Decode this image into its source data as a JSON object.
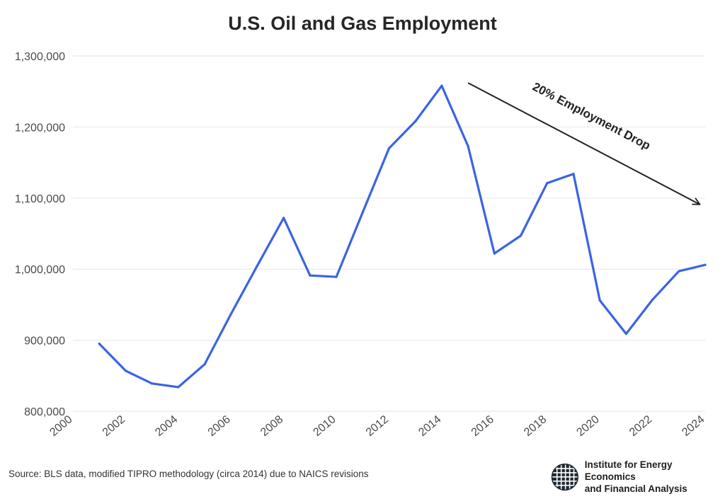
{
  "chart_data": {
    "type": "line",
    "title": "U.S. Oil and Gas Employment",
    "xlabel": "",
    "ylabel": "",
    "x": [
      2001,
      2002,
      2003,
      2004,
      2005,
      2006,
      2007,
      2008,
      2009,
      2010,
      2011,
      2012,
      2013,
      2014,
      2015,
      2016,
      2017,
      2018,
      2019,
      2020,
      2021,
      2022,
      2023,
      2024
    ],
    "series": [
      {
        "values": [
          895000,
          857000,
          839000,
          834000,
          866000,
          937000,
          1005000,
          1072000,
          991000,
          989000,
          1080000,
          1170000,
          1208000,
          1258000,
          1173000,
          1022000,
          1047000,
          1121000,
          1134000,
          956000,
          909000,
          957000,
          997000,
          1006000
        ]
      }
    ],
    "xlim": [
      2000,
      2024
    ],
    "ylim": [
      800000,
      1300000
    ],
    "x_ticks": [
      "2000",
      "2002",
      "2004",
      "2006",
      "2008",
      "2010",
      "2012",
      "2014",
      "2016",
      "2018",
      "2020",
      "2022",
      "2024"
    ],
    "y_ticks": [
      "800,000",
      "900,000",
      "1,000,000",
      "1,100,000",
      "1,200,000",
      "1,300,000"
    ],
    "grid": true,
    "line_color": "#3b63e3",
    "annotation": {
      "text": "20% Employment Drop",
      "from": [
        2015,
        1262000
      ],
      "to": [
        2023.8,
        1091000
      ]
    }
  },
  "source": "Source: BLS data, modified TIPRO methodology (circa 2014) due to NAICS revisions",
  "brand": {
    "line1": "Institute for Energy Economics",
    "line2": "and Financial Analysis",
    "icon": "globe-logo-icon"
  }
}
